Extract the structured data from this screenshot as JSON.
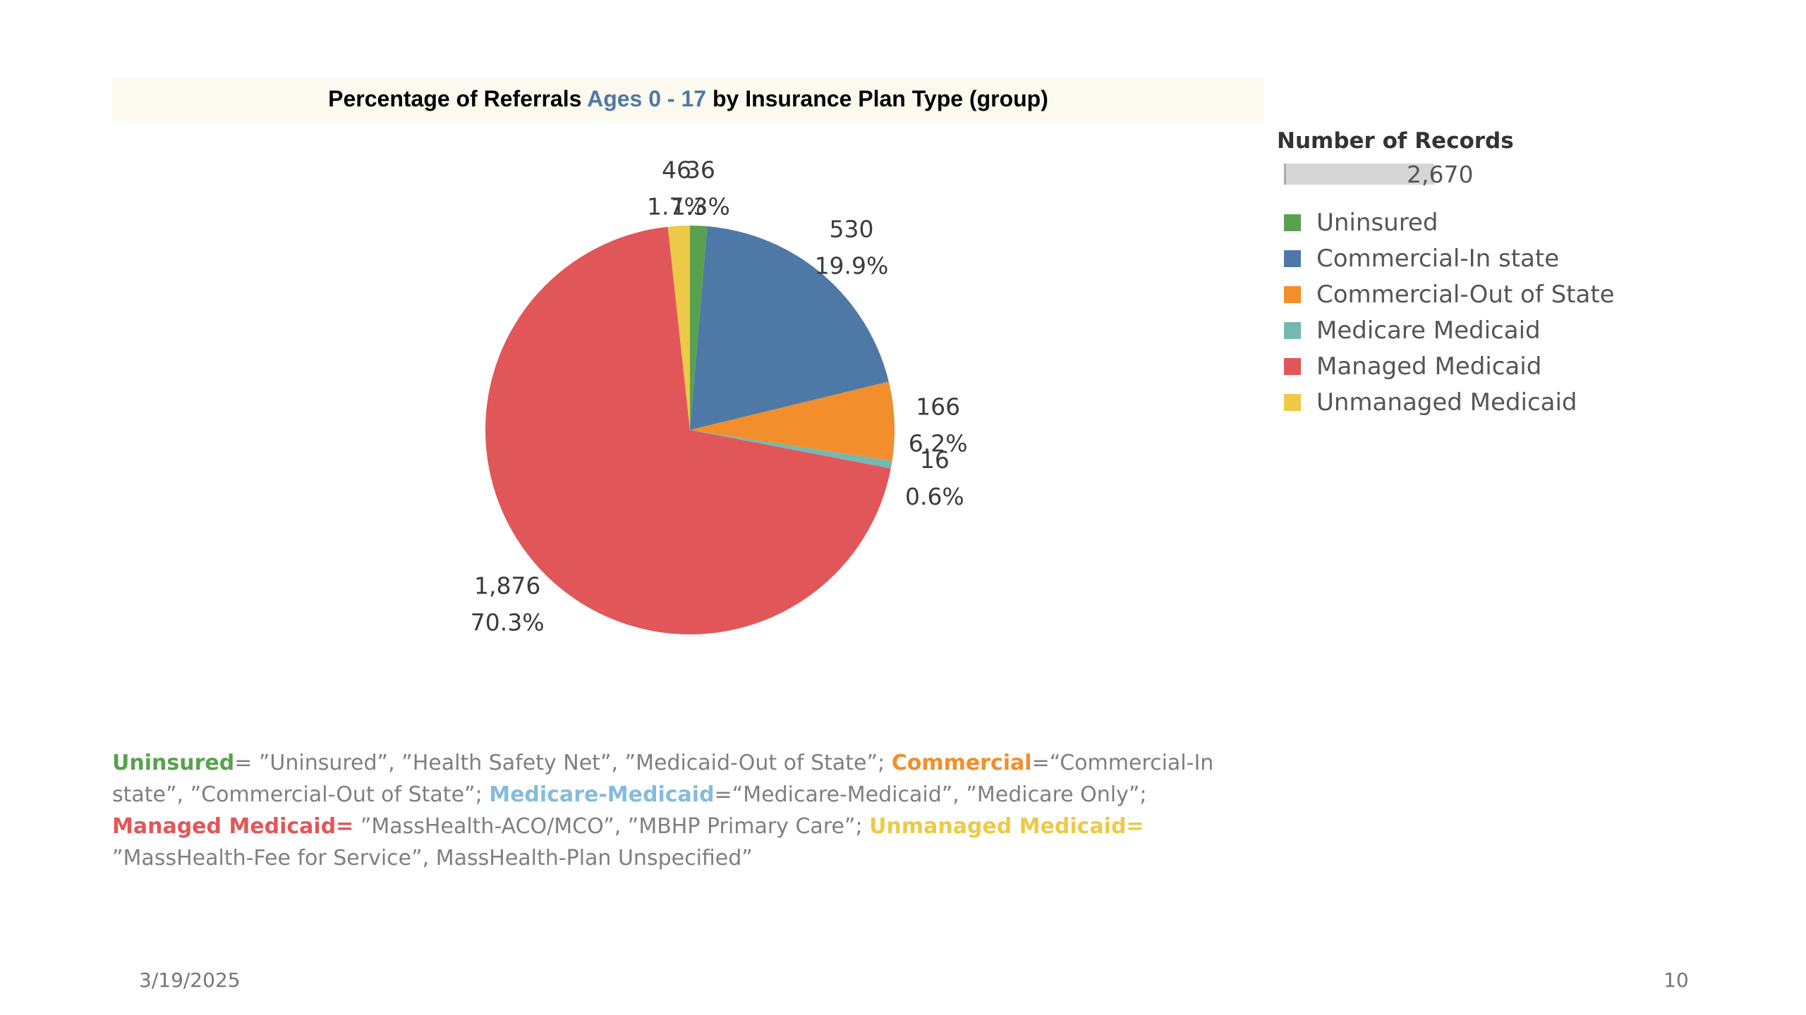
{
  "chart_data": {
    "type": "pie",
    "title_parts": {
      "before": "Percentage of Referrals ",
      "highlight": "Ages 0 - 17",
      "after": " by Insurance Plan Type (group)"
    },
    "slices": [
      {
        "label": "Uninsured",
        "value": 36,
        "percent": "1.3%",
        "value_text": "36",
        "color": "#59a14f"
      },
      {
        "label": "Commercial-In state",
        "value": 530,
        "percent": "19.9%",
        "value_text": "530",
        "color": "#4e79a7"
      },
      {
        "label": "Commercial-Out of State",
        "value": 166,
        "percent": "6.2%",
        "value_text": "166",
        "color": "#f28e2b"
      },
      {
        "label": "Medicare Medicaid",
        "value": 16,
        "percent": "0.6%",
        "value_text": "16",
        "color": "#76b7b2"
      },
      {
        "label": "Managed Medicaid",
        "value": 1876,
        "percent": "70.3%",
        "value_text": "1,876",
        "color": "#e15759"
      },
      {
        "label": "Unmanaged Medicaid",
        "value": 46,
        "percent": "1.7%",
        "value_text": "46",
        "color": "#edc948"
      }
    ],
    "legend": {
      "placement": "right",
      "size_title": "Number of Records",
      "size_value": "2,670"
    }
  },
  "footnote": {
    "uninsured_key": "Uninsured",
    "uninsured_text": "= ”Uninsured”, ”Health Safety Net”, ”Medicaid-Out of State”; ",
    "commercial_key": "Commercial",
    "commercial_text": "=“Commercial-In state”, ”Commercial-Out of State”; ",
    "medicare_key": "Medicare-Medicaid",
    "medicare_text": "=“Medicare-Medicaid”, ”Medicare Only”; ",
    "managed_key": "Managed Medicaid=",
    "managed_text": " ”MassHealth-ACO/MCO”, ”MBHP Primary Care”; ",
    "unmanaged_key": "Unmanaged Medicaid=",
    "unmanaged_text": " ”MassHealth-Fee for Service”, MassHealth-Plan Unspecified”"
  },
  "slide": {
    "date": "3/19/2025",
    "page_number": "10"
  }
}
